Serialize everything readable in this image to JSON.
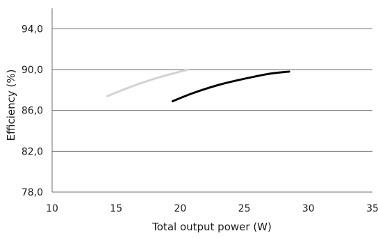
{
  "chart_data": {
    "type": "line",
    "xlabel": "Total output power (W)",
    "ylabel": "Efficiency (%)",
    "xlim": [
      10,
      35
    ],
    "ylim": [
      78,
      96
    ],
    "xticks": [
      10,
      15,
      20,
      25,
      30,
      35
    ],
    "yticks": [
      78.0,
      82.0,
      86.0,
      90.0,
      94.0
    ],
    "xtick_labels": [
      "10",
      "15",
      "20",
      "25",
      "30",
      "35"
    ],
    "ytick_labels": [
      "78,0",
      "82,0",
      "86,0",
      "90,0",
      "94,0"
    ],
    "grid": "horizontal",
    "series": [
      {
        "color": "#d3d3d3",
        "x": [
          14.3,
          15.5,
          17.0,
          18.5,
          20.0,
          20.6
        ],
        "y": [
          87.4,
          88.0,
          88.7,
          89.3,
          89.8,
          90.0
        ]
      },
      {
        "color": "#000000",
        "x": [
          19.4,
          21.0,
          23.0,
          25.0,
          27.0,
          28.5
        ],
        "y": [
          86.9,
          87.7,
          88.5,
          89.1,
          89.6,
          89.8
        ]
      }
    ]
  }
}
